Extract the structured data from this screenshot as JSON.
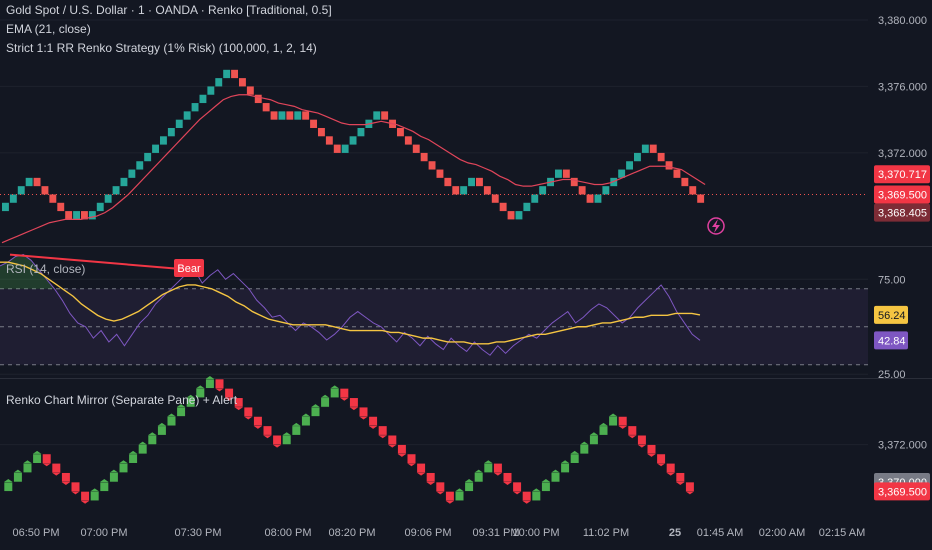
{
  "header": {
    "symbol_line": "Gold Spot / U.S. Dollar · 1 · OANDA · Renko [Traditional, 0.5]",
    "ema_line": "EMA (21, close)",
    "strategy_line": "Strict 1:1 RR Renko Strategy (1% Risk) (100,000, 1, 2, 14)"
  },
  "colors": {
    "background": "#131722",
    "up": "#26a69a",
    "down": "#ef5350",
    "mirror_up": "#4caf50",
    "mirror_down": "#f23645",
    "ema": "#e0455a",
    "rsi": "#7e57c2",
    "rsi_ma": "#f5c542",
    "rsi_band": "#2a2440",
    "divergence": "#f23645",
    "alert_icon": "#e040a0"
  },
  "icons": {
    "alert": "lightning-icon"
  },
  "chart_data": [
    {
      "type": "renko",
      "pane": "main",
      "brick_size": 0.5,
      "ylim": [
        3366.4,
        3381.2
      ],
      "y_ticks": [
        "3,372.000",
        "3,376.000",
        "3,380.000"
      ],
      "y_tick_values": [
        3372,
        3376,
        3380
      ],
      "bricks_path": [
        3368.5,
        3369.0,
        3369.5,
        3370.0,
        3370.5,
        3370.0,
        3369.5,
        3369.0,
        3368.5,
        3368.0,
        3368.5,
        3368.0,
        3368.5,
        3369.0,
        3369.5,
        3370.0,
        3370.5,
        3371.0,
        3371.5,
        3372.0,
        3372.5,
        3373.0,
        3373.5,
        3374.0,
        3374.5,
        3375.0,
        3375.5,
        3376.0,
        3376.5,
        3377.0,
        3376.5,
        3376.0,
        3375.5,
        3375.0,
        3374.5,
        3374.0,
        3374.5,
        3374.0,
        3374.5,
        3374.0,
        3373.5,
        3373.0,
        3372.5,
        3372.0,
        3372.5,
        3373.0,
        3373.5,
        3374.0,
        3374.5,
        3374.0,
        3373.5,
        3373.0,
        3372.5,
        3372.0,
        3371.5,
        3371.0,
        3370.5,
        3370.0,
        3369.5,
        3370.0,
        3370.5,
        3370.0,
        3369.5,
        3369.0,
        3368.5,
        3368.0,
        3368.5,
        3369.0,
        3369.5,
        3370.0,
        3370.5,
        3371.0,
        3370.5,
        3370.0,
        3369.5,
        3369.0,
        3369.5,
        3370.0,
        3370.5,
        3371.0,
        3371.5,
        3372.0,
        3372.5,
        3372.0,
        3371.5,
        3371.0,
        3370.5,
        3370.0,
        3369.5,
        3369.0
      ],
      "ema": [
        3366.6,
        3366.8,
        3367.0,
        3367.2,
        3367.4,
        3367.6,
        3367.8,
        3367.9,
        3368.0,
        3368.0,
        3368.0,
        3368.1,
        3368.2,
        3368.4,
        3368.7,
        3369.1,
        3369.5,
        3370.0,
        3370.5,
        3371.0,
        3371.5,
        3372.0,
        3372.5,
        3373.0,
        3373.5,
        3374.0,
        3374.4,
        3374.8,
        3375.2,
        3375.4,
        3375.5,
        3375.5,
        3375.4,
        3375.3,
        3375.2,
        3375.0,
        3374.9,
        3374.8,
        3374.6,
        3374.5,
        3374.4,
        3374.2,
        3374.0,
        3373.8,
        3373.7,
        3373.7,
        3373.7,
        3373.8,
        3373.9,
        3373.8,
        3373.7,
        3373.5,
        3373.3,
        3373.0,
        3372.8,
        3372.5,
        3372.2,
        3371.9,
        3371.6,
        3371.4,
        3371.3,
        3371.1,
        3370.9,
        3370.6,
        3370.4,
        3370.1,
        3370.0,
        3370.0,
        3370.1,
        3370.2,
        3370.3,
        3370.4,
        3370.4,
        3370.3,
        3370.2,
        3370.1,
        3370.1,
        3370.2,
        3370.4,
        3370.6,
        3370.8,
        3371.0,
        3371.2,
        3371.2,
        3371.2,
        3371.1,
        3371.0,
        3370.7,
        3370.4,
        3370.1
      ],
      "price_labels": [
        {
          "text": "3,370.717",
          "value": 3370.717,
          "color": "#f23645"
        },
        {
          "text": "3,369.500",
          "value": 3369.5,
          "color": "#f23645"
        },
        {
          "text": "3,368.405",
          "value": 3368.405,
          "color": "#7d2c36"
        }
      ],
      "title": "Gold Spot / U.S. Dollar · 1 · OANDA · Renko [Traditional, 0.5]"
    },
    {
      "type": "line",
      "pane": "rsi",
      "title": "RSI (14, close)",
      "ylim": [
        23,
        92
      ],
      "y_ticks": [
        "25.00",
        "75.00"
      ],
      "y_tick_values": [
        25,
        75
      ],
      "band": [
        30,
        70
      ],
      "midline": 50,
      "series": [
        {
          "name": "RSI",
          "values": [
            82,
            84,
            87,
            88,
            85,
            80,
            75,
            70,
            64,
            57,
            52,
            50,
            44,
            48,
            42,
            46,
            40,
            46,
            52,
            56,
            62,
            66,
            70,
            74,
            78,
            80,
            73,
            77,
            80,
            75,
            78,
            74,
            70,
            64,
            60,
            55,
            56,
            52,
            48,
            52,
            50,
            47,
            43,
            46,
            50,
            55,
            58,
            55,
            52,
            50,
            46,
            42,
            47,
            44,
            40,
            45,
            41,
            38,
            44,
            40,
            37,
            42,
            38,
            35,
            40,
            36,
            40,
            43,
            46,
            44,
            48,
            52,
            55,
            58,
            52,
            55,
            59,
            62,
            60,
            56,
            52,
            55,
            60,
            64,
            68,
            72,
            66,
            58,
            52,
            46,
            42.84
          ]
        },
        {
          "name": "RSI-based MA",
          "values": [
            84,
            84,
            83,
            82,
            80,
            78,
            75,
            72,
            69,
            66,
            62,
            59,
            56,
            54,
            53,
            54,
            56,
            58,
            61,
            64,
            67,
            69,
            71,
            72,
            72,
            71,
            70,
            68,
            66,
            63,
            61,
            58,
            56,
            54,
            53,
            52,
            51,
            51,
            51,
            51,
            51,
            50,
            49,
            48,
            48,
            48,
            48,
            48,
            47,
            47,
            46,
            45,
            44,
            44,
            43,
            42,
            42,
            42,
            41,
            41,
            41,
            42,
            42,
            43,
            44,
            45,
            46,
            46,
            47,
            48,
            49,
            50,
            50,
            51,
            52,
            52,
            53,
            54,
            55,
            55,
            56,
            56,
            56,
            57,
            57,
            57,
            56.24
          ]
        }
      ],
      "value_labels": [
        {
          "text": "56.24",
          "value": 56.24,
          "color": "#f5c542"
        },
        {
          "text": "42.84",
          "value": 42.84,
          "color": "#7e57c2"
        }
      ],
      "annotation": {
        "text": "Bear",
        "color": "#f23645"
      }
    },
    {
      "type": "renko",
      "pane": "mirror",
      "title": "Renko Chart Mirror (Separate Pane) + Alert",
      "ylim": [
        3368.4,
        3375.5
      ],
      "y_ticks": [
        "3,372.000"
      ],
      "y_tick_values": [
        3372
      ],
      "bricks_path": [
        3369.5,
        3370.0,
        3370.5,
        3371.0,
        3371.5,
        3371.0,
        3370.5,
        3370.0,
        3369.5,
        3369.0,
        3369.5,
        3370.0,
        3370.5,
        3371.0,
        3371.5,
        3372.0,
        3372.5,
        3373.0,
        3373.5,
        3374.0,
        3374.5,
        3375.0,
        3375.5,
        3375.0,
        3374.5,
        3374.0,
        3373.5,
        3373.0,
        3372.5,
        3372.0,
        3372.5,
        3373.0,
        3373.5,
        3374.0,
        3374.5,
        3375.0,
        3374.5,
        3374.0,
        3373.5,
        3373.0,
        3372.5,
        3372.0,
        3371.5,
        3371.0,
        3370.5,
        3370.0,
        3369.5,
        3369.0,
        3369.5,
        3370.0,
        3370.5,
        3371.0,
        3370.5,
        3370.0,
        3369.5,
        3369.0,
        3369.5,
        3370.0,
        3370.5,
        3371.0,
        3371.5,
        3372.0,
        3372.5,
        3373.0,
        3373.5,
        3373.0,
        3372.5,
        3372.0,
        3371.5,
        3371.0,
        3370.5,
        3370.0,
        3369.5
      ],
      "price_labels": [
        {
          "text": "3,370.000",
          "value": 3370.0,
          "color": "#787b86"
        },
        {
          "text": "3,369.500",
          "value": 3369.5,
          "color": "#f23645"
        }
      ]
    }
  ],
  "time_axis": [
    "06:50 PM",
    "07:00 PM",
    "07:30 PM",
    "08:00 PM",
    "08:20 PM",
    "09:06 PM",
    "09:31 PM",
    "10:00 PM",
    "11:02 PM",
    "25",
    "01:45 AM",
    "02:00 AM",
    "02:15 AM"
  ]
}
